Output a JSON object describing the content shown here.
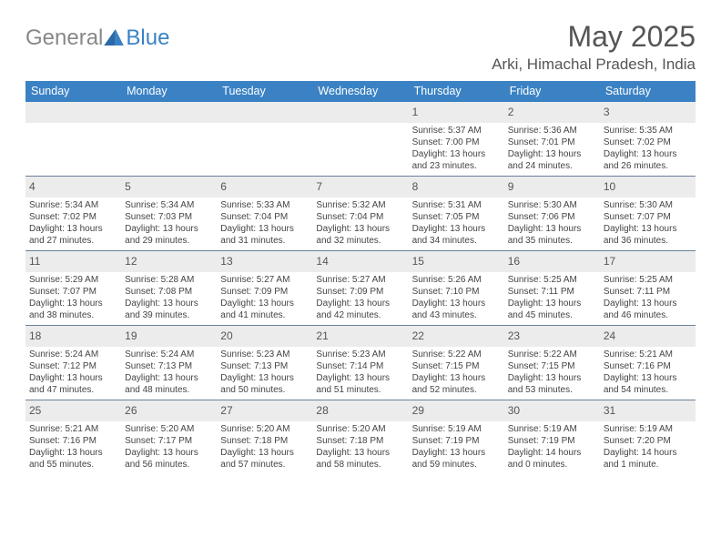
{
  "logo": {
    "text1": "General",
    "text2": "Blue"
  },
  "title": "May 2025",
  "location": "Arki, Himachal Pradesh, India",
  "header_color": "#3b82c4",
  "divider_color": "#6a819a",
  "dow": [
    "Sunday",
    "Monday",
    "Tuesday",
    "Wednesday",
    "Thursday",
    "Friday",
    "Saturday"
  ],
  "weeks": [
    [
      {
        "n": "",
        "sr": "",
        "ss": "",
        "dl": ""
      },
      {
        "n": "",
        "sr": "",
        "ss": "",
        "dl": ""
      },
      {
        "n": "",
        "sr": "",
        "ss": "",
        "dl": ""
      },
      {
        "n": "",
        "sr": "",
        "ss": "",
        "dl": ""
      },
      {
        "n": "1",
        "sr": "Sunrise: 5:37 AM",
        "ss": "Sunset: 7:00 PM",
        "dl": "Daylight: 13 hours and 23 minutes."
      },
      {
        "n": "2",
        "sr": "Sunrise: 5:36 AM",
        "ss": "Sunset: 7:01 PM",
        "dl": "Daylight: 13 hours and 24 minutes."
      },
      {
        "n": "3",
        "sr": "Sunrise: 5:35 AM",
        "ss": "Sunset: 7:02 PM",
        "dl": "Daylight: 13 hours and 26 minutes."
      }
    ],
    [
      {
        "n": "4",
        "sr": "Sunrise: 5:34 AM",
        "ss": "Sunset: 7:02 PM",
        "dl": "Daylight: 13 hours and 27 minutes."
      },
      {
        "n": "5",
        "sr": "Sunrise: 5:34 AM",
        "ss": "Sunset: 7:03 PM",
        "dl": "Daylight: 13 hours and 29 minutes."
      },
      {
        "n": "6",
        "sr": "Sunrise: 5:33 AM",
        "ss": "Sunset: 7:04 PM",
        "dl": "Daylight: 13 hours and 31 minutes."
      },
      {
        "n": "7",
        "sr": "Sunrise: 5:32 AM",
        "ss": "Sunset: 7:04 PM",
        "dl": "Daylight: 13 hours and 32 minutes."
      },
      {
        "n": "8",
        "sr": "Sunrise: 5:31 AM",
        "ss": "Sunset: 7:05 PM",
        "dl": "Daylight: 13 hours and 34 minutes."
      },
      {
        "n": "9",
        "sr": "Sunrise: 5:30 AM",
        "ss": "Sunset: 7:06 PM",
        "dl": "Daylight: 13 hours and 35 minutes."
      },
      {
        "n": "10",
        "sr": "Sunrise: 5:30 AM",
        "ss": "Sunset: 7:07 PM",
        "dl": "Daylight: 13 hours and 36 minutes."
      }
    ],
    [
      {
        "n": "11",
        "sr": "Sunrise: 5:29 AM",
        "ss": "Sunset: 7:07 PM",
        "dl": "Daylight: 13 hours and 38 minutes."
      },
      {
        "n": "12",
        "sr": "Sunrise: 5:28 AM",
        "ss": "Sunset: 7:08 PM",
        "dl": "Daylight: 13 hours and 39 minutes."
      },
      {
        "n": "13",
        "sr": "Sunrise: 5:27 AM",
        "ss": "Sunset: 7:09 PM",
        "dl": "Daylight: 13 hours and 41 minutes."
      },
      {
        "n": "14",
        "sr": "Sunrise: 5:27 AM",
        "ss": "Sunset: 7:09 PM",
        "dl": "Daylight: 13 hours and 42 minutes."
      },
      {
        "n": "15",
        "sr": "Sunrise: 5:26 AM",
        "ss": "Sunset: 7:10 PM",
        "dl": "Daylight: 13 hours and 43 minutes."
      },
      {
        "n": "16",
        "sr": "Sunrise: 5:25 AM",
        "ss": "Sunset: 7:11 PM",
        "dl": "Daylight: 13 hours and 45 minutes."
      },
      {
        "n": "17",
        "sr": "Sunrise: 5:25 AM",
        "ss": "Sunset: 7:11 PM",
        "dl": "Daylight: 13 hours and 46 minutes."
      }
    ],
    [
      {
        "n": "18",
        "sr": "Sunrise: 5:24 AM",
        "ss": "Sunset: 7:12 PM",
        "dl": "Daylight: 13 hours and 47 minutes."
      },
      {
        "n": "19",
        "sr": "Sunrise: 5:24 AM",
        "ss": "Sunset: 7:13 PM",
        "dl": "Daylight: 13 hours and 48 minutes."
      },
      {
        "n": "20",
        "sr": "Sunrise: 5:23 AM",
        "ss": "Sunset: 7:13 PM",
        "dl": "Daylight: 13 hours and 50 minutes."
      },
      {
        "n": "21",
        "sr": "Sunrise: 5:23 AM",
        "ss": "Sunset: 7:14 PM",
        "dl": "Daylight: 13 hours and 51 minutes."
      },
      {
        "n": "22",
        "sr": "Sunrise: 5:22 AM",
        "ss": "Sunset: 7:15 PM",
        "dl": "Daylight: 13 hours and 52 minutes."
      },
      {
        "n": "23",
        "sr": "Sunrise: 5:22 AM",
        "ss": "Sunset: 7:15 PM",
        "dl": "Daylight: 13 hours and 53 minutes."
      },
      {
        "n": "24",
        "sr": "Sunrise: 5:21 AM",
        "ss": "Sunset: 7:16 PM",
        "dl": "Daylight: 13 hours and 54 minutes."
      }
    ],
    [
      {
        "n": "25",
        "sr": "Sunrise: 5:21 AM",
        "ss": "Sunset: 7:16 PM",
        "dl": "Daylight: 13 hours and 55 minutes."
      },
      {
        "n": "26",
        "sr": "Sunrise: 5:20 AM",
        "ss": "Sunset: 7:17 PM",
        "dl": "Daylight: 13 hours and 56 minutes."
      },
      {
        "n": "27",
        "sr": "Sunrise: 5:20 AM",
        "ss": "Sunset: 7:18 PM",
        "dl": "Daylight: 13 hours and 57 minutes."
      },
      {
        "n": "28",
        "sr": "Sunrise: 5:20 AM",
        "ss": "Sunset: 7:18 PM",
        "dl": "Daylight: 13 hours and 58 minutes."
      },
      {
        "n": "29",
        "sr": "Sunrise: 5:19 AM",
        "ss": "Sunset: 7:19 PM",
        "dl": "Daylight: 13 hours and 59 minutes."
      },
      {
        "n": "30",
        "sr": "Sunrise: 5:19 AM",
        "ss": "Sunset: 7:19 PM",
        "dl": "Daylight: 14 hours and 0 minutes."
      },
      {
        "n": "31",
        "sr": "Sunrise: 5:19 AM",
        "ss": "Sunset: 7:20 PM",
        "dl": "Daylight: 14 hours and 1 minute."
      }
    ]
  ]
}
